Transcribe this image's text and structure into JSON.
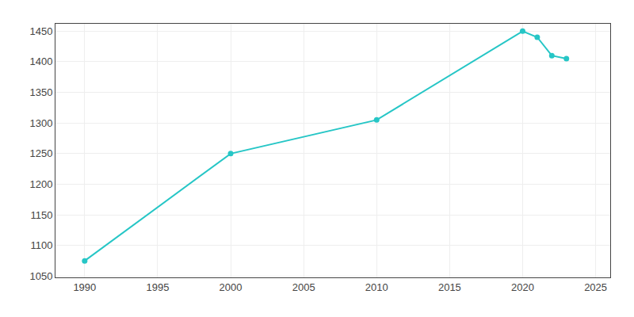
{
  "chart_data": {
    "type": "line",
    "x": [
      1990,
      2000,
      2010,
      2020,
      2021,
      2022,
      2023
    ],
    "values": [
      1075,
      1250,
      1305,
      1450,
      1440,
      1410,
      1405
    ],
    "color": "#26C6C6",
    "marker": "circle",
    "xlim": [
      1988,
      2026
    ],
    "ylim": [
      1048,
      1462
    ],
    "xticks": [
      1990,
      1995,
      2000,
      2005,
      2010,
      2015,
      2020,
      2025
    ],
    "yticks": [
      1050,
      1100,
      1150,
      1200,
      1250,
      1300,
      1350,
      1400,
      1450
    ],
    "grid": true
  }
}
